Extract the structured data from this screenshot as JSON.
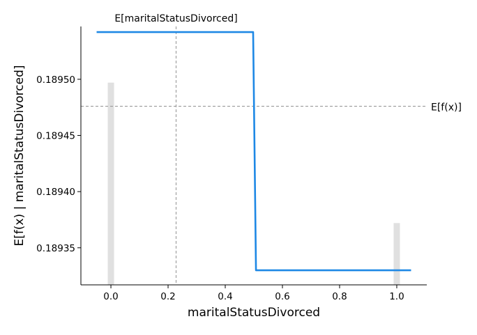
{
  "chart_data": {
    "type": "line",
    "xlabel": "maritalStatusDivorced",
    "ylabel": "E[f(x) | maritalStatusDivorced]",
    "xlim": [
      -0.105,
      1.105
    ],
    "ylim": [
      0.189317,
      0.189547
    ],
    "x_ticks": [
      {
        "value": 0.0,
        "label": "0.0"
      },
      {
        "value": 0.2,
        "label": "0.2"
      },
      {
        "value": 0.4,
        "label": "0.4"
      },
      {
        "value": 0.6,
        "label": "0.6"
      },
      {
        "value": 0.8,
        "label": "0.8"
      },
      {
        "value": 1.0,
        "label": "1.0"
      }
    ],
    "y_ticks": [
      {
        "value": 0.18935,
        "label": "0.18935"
      },
      {
        "value": 0.1894,
        "label": "0.18940"
      },
      {
        "value": 0.18945,
        "label": "0.18945"
      },
      {
        "value": 0.1895,
        "label": "0.18950"
      }
    ],
    "series": [
      {
        "color": "#1e88e5",
        "x": [
          -0.05,
          0.4975,
          0.5075,
          1.05
        ],
        "y": [
          0.189542,
          0.189542,
          0.18933,
          0.18933
        ]
      }
    ],
    "histogram": {
      "color": "#e0e0e0",
      "bars": [
        {
          "x": 0.0,
          "top": 0.189497
        },
        {
          "x": 1.0,
          "top": 0.189372
        }
      ]
    },
    "reference_lines": {
      "vertical": {
        "x": 0.228,
        "label": "E[maritalStatusDivorced]"
      },
      "horizontal": {
        "y": 0.189476,
        "label": "E[f(x)]"
      },
      "color": "#999999"
    },
    "grid": false,
    "legend": "none"
  }
}
